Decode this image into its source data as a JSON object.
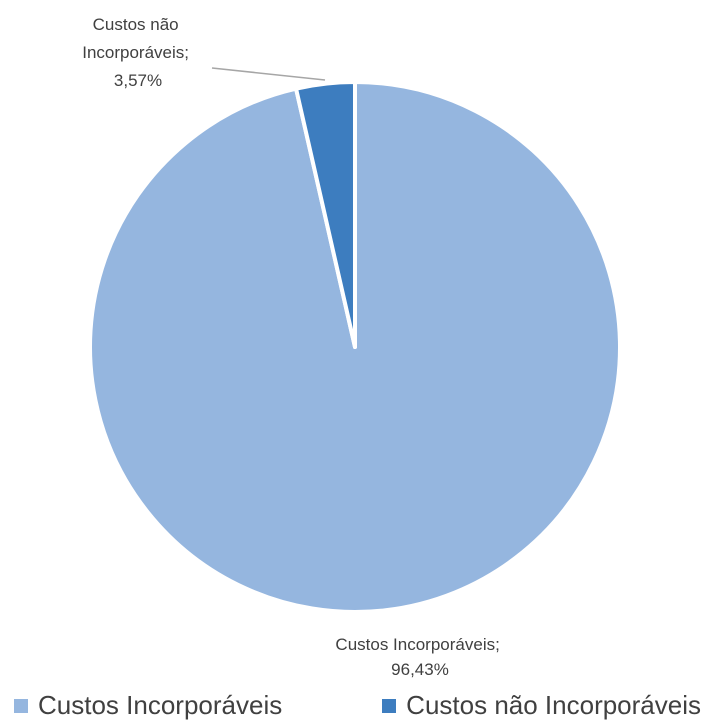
{
  "chart_data": {
    "type": "pie",
    "categories": [
      "Custos Incorporáveis",
      "Custos não Incorporáveis"
    ],
    "values": [
      96.43,
      3.57
    ],
    "colors": [
      "#95b6df",
      "#3d7dbf"
    ],
    "data_labels": [
      {
        "lines": [
          "Custos Incorporáveis;",
          "96,43%"
        ]
      },
      {
        "lines": [
          "Custos não",
          "Incorporáveis;",
          "3,57%"
        ]
      }
    ],
    "legend": {
      "placement": "bottom",
      "entries": [
        "Custos Incorporáveis",
        "Custos não Incorporáveis"
      ]
    }
  }
}
